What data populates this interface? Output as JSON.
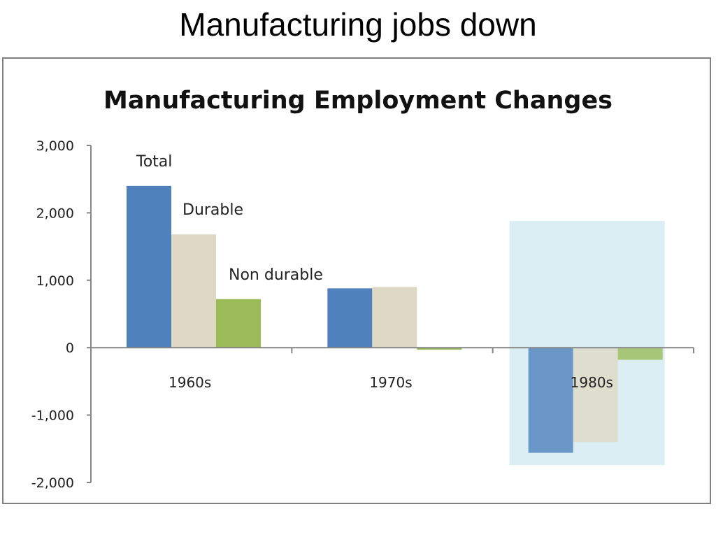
{
  "slide": {
    "title": "Manufacturing jobs down"
  },
  "chart_data": {
    "type": "bar",
    "title": "Manufacturing Employment Changes",
    "categories": [
      "1960s",
      "1970s",
      "1980s"
    ],
    "series": [
      {
        "name": "Total",
        "values": [
          2400,
          880,
          -1560
        ],
        "color": "#4f81bd"
      },
      {
        "name": "Durable",
        "values": [
          1680,
          900,
          -1400
        ],
        "color": "#ddd9c4"
      },
      {
        "name": "Non durable",
        "values": [
          720,
          -30,
          -180
        ],
        "color": "#9bbb59"
      }
    ],
    "ylim": [
      -2000,
      3000
    ],
    "yticks": [
      "3,000",
      "2,000",
      "1,000",
      "0",
      "-1,000",
      "-2,000"
    ],
    "ytick_values": [
      3000,
      2000,
      1000,
      0,
      -1000,
      -2000
    ],
    "highlight_category": "1980s",
    "highlight_color": "#daeef3",
    "grid": false,
    "legend": "inline labels above first category bars"
  }
}
